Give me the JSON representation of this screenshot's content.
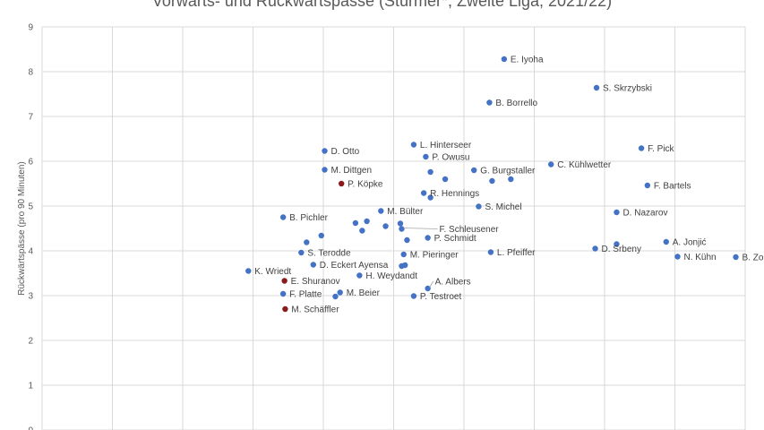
{
  "chart_data": {
    "type": "scatter",
    "title": "Vorwärts- und Rückwärtspässe (Stürmer*, Zweite Liga, 2021/22)",
    "xlabel": "",
    "ylabel": "Rückwärtspässe (pro 90 Minuten)",
    "xlim": [
      0,
      10.5
    ],
    "ylim": [
      0,
      9
    ],
    "y_ticks": [
      "0",
      "1",
      "2",
      "3",
      "4",
      "5",
      "6",
      "7",
      "8",
      "9"
    ],
    "x_grid_values": [
      1.05,
      2.1,
      3.15,
      4.2,
      5.25,
      6.3,
      7.35,
      8.4,
      9.45,
      10.5
    ],
    "grid": true,
    "colors": {
      "default": "#4472c4",
      "highlight": "#8b1a1a"
    },
    "points": [
      {
        "x": 6.9,
        "y": 8.28,
        "label": "E. Iyoha",
        "highlight": false
      },
      {
        "x": 8.28,
        "y": 7.64,
        "label": "S. Skrzybski",
        "highlight": false
      },
      {
        "x": 6.68,
        "y": 7.31,
        "label": "B. Borrello",
        "highlight": false
      },
      {
        "x": 5.55,
        "y": 6.37,
        "label": "L. Hinterseer",
        "highlight": false
      },
      {
        "x": 4.22,
        "y": 6.23,
        "label": "D. Otto",
        "highlight": false
      },
      {
        "x": 8.95,
        "y": 6.29,
        "label": "F. Pick",
        "highlight": false
      },
      {
        "x": 5.73,
        "y": 6.1,
        "label": "P. Owusu",
        "highlight": false
      },
      {
        "x": 7.6,
        "y": 5.93,
        "label": "C. Kühlwetter",
        "highlight": false
      },
      {
        "x": 4.22,
        "y": 5.81,
        "label": "M. Dittgen",
        "highlight": false
      },
      {
        "x": 6.45,
        "y": 5.8,
        "label": "G. Burgstaller",
        "highlight": false
      },
      {
        "x": 5.8,
        "y": 5.76,
        "label": "",
        "highlight": false
      },
      {
        "x": 6.02,
        "y": 5.6,
        "label": "",
        "highlight": false
      },
      {
        "x": 6.72,
        "y": 5.56,
        "label": "",
        "highlight": false
      },
      {
        "x": 7.0,
        "y": 5.6,
        "label": "",
        "highlight": false
      },
      {
        "x": 4.47,
        "y": 5.5,
        "label": "P. Köpke",
        "highlight": true
      },
      {
        "x": 9.04,
        "y": 5.46,
        "label": "F. Bartels",
        "highlight": false
      },
      {
        "x": 5.7,
        "y": 5.29,
        "label": "R. Hennings",
        "highlight": false
      },
      {
        "x": 5.8,
        "y": 5.19,
        "label": "",
        "highlight": false
      },
      {
        "x": 6.52,
        "y": 4.99,
        "label": "S. Michel",
        "highlight": false
      },
      {
        "x": 5.06,
        "y": 4.89,
        "label": "M. Bülter",
        "highlight": false
      },
      {
        "x": 8.58,
        "y": 4.86,
        "label": "D. Nazarov",
        "highlight": false
      },
      {
        "x": 3.6,
        "y": 4.75,
        "label": "B. Pichler",
        "highlight": false
      },
      {
        "x": 4.85,
        "y": 4.66,
        "label": "",
        "highlight": false
      },
      {
        "x": 4.68,
        "y": 4.62,
        "label": "",
        "highlight": false
      },
      {
        "x": 5.35,
        "y": 4.61,
        "label": "",
        "highlight": false
      },
      {
        "x": 5.13,
        "y": 4.55,
        "label": "",
        "highlight": false
      },
      {
        "x": 5.37,
        "y": 4.49,
        "label": "F. Schleusener",
        "highlight": false
      },
      {
        "x": 4.78,
        "y": 4.45,
        "label": "",
        "highlight": false
      },
      {
        "x": 4.17,
        "y": 4.34,
        "label": "",
        "highlight": false
      },
      {
        "x": 5.76,
        "y": 4.29,
        "label": "P. Schmidt",
        "highlight": false
      },
      {
        "x": 5.45,
        "y": 4.24,
        "label": "",
        "highlight": false
      },
      {
        "x": 9.32,
        "y": 4.2,
        "label": "A. Jonjić",
        "highlight": false
      },
      {
        "x": 3.95,
        "y": 4.19,
        "label": "",
        "highlight": false
      },
      {
        "x": 8.58,
        "y": 4.15,
        "label": "",
        "highlight": false
      },
      {
        "x": 8.26,
        "y": 4.05,
        "label": "D. Srbeny",
        "highlight": false
      },
      {
        "x": 6.7,
        "y": 3.97,
        "label": "L. Pfeiffer",
        "highlight": false
      },
      {
        "x": 3.87,
        "y": 3.96,
        "label": "S. Terodde",
        "highlight": false
      },
      {
        "x": 5.4,
        "y": 3.92,
        "label": "M. Pieringer",
        "highlight": false
      },
      {
        "x": 9.49,
        "y": 3.87,
        "label": "N. Kühn",
        "highlight": false
      },
      {
        "x": 10.36,
        "y": 3.86,
        "label": "B. Zolinski",
        "highlight": false
      },
      {
        "x": 4.05,
        "y": 3.69,
        "label": "D. Eckert Ayensa",
        "highlight": false
      },
      {
        "x": 5.42,
        "y": 3.68,
        "label": "",
        "highlight": false
      },
      {
        "x": 5.37,
        "y": 3.66,
        "label": "",
        "highlight": false
      },
      {
        "x": 3.08,
        "y": 3.55,
        "label": "K. Wriedt",
        "highlight": false
      },
      {
        "x": 4.74,
        "y": 3.45,
        "label": "H. Weydandt",
        "highlight": false
      },
      {
        "x": 3.62,
        "y": 3.33,
        "label": "E. Shuranov",
        "highlight": true
      },
      {
        "x": 5.76,
        "y": 3.16,
        "label": "A. Albers",
        "highlight": false
      },
      {
        "x": 4.45,
        "y": 3.07,
        "label": "M. Beier",
        "highlight": false
      },
      {
        "x": 3.6,
        "y": 3.04,
        "label": "F. Platte",
        "highlight": false
      },
      {
        "x": 4.38,
        "y": 2.98,
        "label": "",
        "highlight": false
      },
      {
        "x": 5.55,
        "y": 2.99,
        "label": "P. Testroet",
        "highlight": false
      },
      {
        "x": 3.63,
        "y": 2.7,
        "label": "M. Schäffler",
        "highlight": true
      }
    ]
  }
}
